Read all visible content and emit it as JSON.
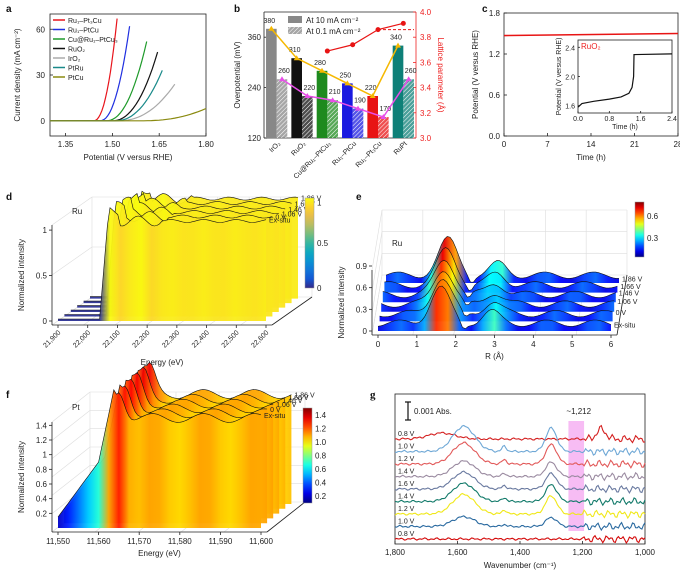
{
  "chart_data": [
    {
      "panel": "a",
      "type": "line",
      "xlabel": "Potential (V versus RHE)",
      "ylabel": "Current density (mA cm⁻²)",
      "xlim": [
        1.3,
        1.8
      ],
      "ylim": [
        -10,
        70
      ],
      "xticks": [
        "1.35",
        "1.50",
        "1.65",
        "1.80"
      ],
      "yticks": [
        "0",
        "30",
        "60"
      ],
      "legend_position": "top-left",
      "series": [
        {
          "name": "Ru₁–Pt₃Cu",
          "color": "#e8141c",
          "onset": 1.44,
          "end_x": 1.515,
          "end_y": 67
        },
        {
          "name": "Ru₁–PtCu",
          "color": "#1f2fe0",
          "onset": 1.46,
          "end_x": 1.555,
          "end_y": 62
        },
        {
          "name": "Cu@Ru₁–PtCu₃",
          "color": "#1e9a2a",
          "onset": 1.48,
          "end_x": 1.61,
          "end_y": 52
        },
        {
          "name": "RuO₂",
          "color": "#111111",
          "onset": 1.5,
          "end_x": 1.645,
          "end_y": 45
        },
        {
          "name": "IrO₂",
          "color": "#aaaaaa",
          "onset": 1.52,
          "end_x": 1.7,
          "end_y": 24
        },
        {
          "name": "PtRu",
          "color": "#1a8a8a",
          "onset": 1.51,
          "end_x": 1.66,
          "end_y": 33
        },
        {
          "name": "PtCu",
          "color": "#8a8a10",
          "onset": 1.6,
          "end_x": 1.8,
          "end_y": 8
        }
      ]
    },
    {
      "panel": "b",
      "type": "bar",
      "ylabel": "Overpotential (mV)",
      "y2label": "Lattice parameter (Å)",
      "ylim": [
        120,
        420
      ],
      "y2lim": [
        3.0,
        4.0
      ],
      "yticks": [
        "120",
        "240",
        "360"
      ],
      "y2ticks": [
        "3.0",
        "3.2",
        "3.4",
        "3.6",
        "3.8",
        "4.0"
      ],
      "categories": [
        "IrO₂",
        "RuO₂",
        "Cu@Ru₁–PtCu₃",
        "Ru₁–PtCu",
        "Ru₁–Pt₃Cu",
        "RuPt"
      ],
      "bar_colors": [
        "#888888",
        "#111111",
        "#1e8a1e",
        "#1a1ae0",
        "#e81414",
        "#0e8078"
      ],
      "legend_position": "top",
      "series": [
        {
          "name": "At 10 mA cm⁻²",
          "values": [
            380,
            310,
            280,
            250,
            220,
            340
          ],
          "line_color": "#f5b800"
        },
        {
          "name": "At 0.1 mA cm⁻²",
          "values": [
            260,
            220,
            210,
            190,
            170,
            260
          ],
          "pattern": "hatched",
          "line_color": "#e84ee8"
        }
      ],
      "lattice_series": {
        "categories_index": [
          2,
          3,
          4,
          5
        ],
        "values": [
          3.69,
          3.74,
          3.86,
          3.91
        ],
        "color": "#e81414",
        "reference_dashed": 3.86
      }
    },
    {
      "panel": "c",
      "type": "line",
      "xlabel": "Time (h)",
      "ylabel": "Potential (V versus RHE)",
      "xlim": [
        0,
        28
      ],
      "ylim": [
        0.0,
        1.8
      ],
      "xticks": [
        "0",
        "7",
        "14",
        "21",
        "28"
      ],
      "yticks": [
        "0.0",
        "0.6",
        "1.2",
        "1.8"
      ],
      "series": [
        {
          "name": "main",
          "color": "#e81414",
          "x": [
            0,
            28
          ],
          "y": [
            1.47,
            1.5
          ]
        }
      ],
      "inset": {
        "label": "RuO₂",
        "xlabel": "Time (h)",
        "ylabel": "Potential (V versus RHE)",
        "xlim": [
          0.0,
          2.4
        ],
        "ylim": [
          1.5,
          2.5
        ],
        "xticks": [
          "0.0",
          "0.8",
          "1.6",
          "2.4"
        ],
        "yticks": [
          "1.6",
          "2.0",
          "2.4"
        ],
        "x": [
          0.0,
          0.1,
          0.4,
          0.8,
          1.1,
          1.3,
          1.38,
          1.42,
          1.43,
          2.4
        ],
        "y": [
          1.58,
          1.63,
          1.66,
          1.69,
          1.72,
          1.77,
          1.85,
          2.0,
          2.3,
          2.31
        ]
      }
    },
    {
      "panel": "d",
      "type": "surface3d",
      "element_label": "Ru",
      "xlabel": "Energy (eV)",
      "ylabel": "Normalized intensity",
      "xticks": [
        "21,900",
        "22,000",
        "22,100",
        "22,200",
        "22,300",
        "22,400",
        "22,500",
        "22,600"
      ],
      "yticks": [
        "0",
        "0.5",
        "1"
      ],
      "colorbar_ticks": [
        "0",
        "0.5",
        "1"
      ],
      "series_labels": [
        "1.86 V",
        "1.66 V",
        "1.46 V",
        "1.06 V",
        "0 V",
        "Ex-situ"
      ]
    },
    {
      "panel": "e",
      "type": "surface3d",
      "element_label": "Ru",
      "xlabel": "R (Å)",
      "ylabel": "Normalized intensity",
      "xticks": [
        "0",
        "1",
        "2",
        "3",
        "4",
        "5",
        "6"
      ],
      "yticks": [
        "0",
        "0.3",
        "0.6",
        "0.9"
      ],
      "colorbar_ticks": [
        "0.3",
        "0.6"
      ],
      "series_labels": [
        "1.86 V",
        "1.66 V",
        "1.46 V",
        "1.06 V",
        "0 V",
        "Ex-situ"
      ]
    },
    {
      "panel": "f",
      "type": "surface3d",
      "element_label": "Pt",
      "xlabel": "Energy (eV)",
      "ylabel": "Normalized intensity",
      "xticks": [
        "11,550",
        "11,560",
        "11,570",
        "11,580",
        "11,590",
        "11,600"
      ],
      "yticks": [
        "0.2",
        "0.4",
        "0.6",
        "0.8",
        "1",
        "1.2",
        "1.4"
      ],
      "colorbar_ticks": [
        "0.2",
        "0.4",
        "0.6",
        "0.8",
        "1.0",
        "1.2",
        "1.4"
      ],
      "series_labels": [
        "1.86 V",
        "1.66 V",
        "1.46 V",
        "1.06 V",
        "0 V",
        "Ex-situ"
      ]
    },
    {
      "panel": "g",
      "type": "line",
      "xlabel": "Wavenumber (cm⁻¹)",
      "xlim": [
        1800,
        1000
      ],
      "xticks": [
        "1,800",
        "1,600",
        "1,400",
        "1,200",
        "1,000"
      ],
      "scale_bar": "0.001 Abs.",
      "annotation": "~1,212",
      "highlight_band": [
        1245,
        1195
      ],
      "series": [
        {
          "name": "0.8 V",
          "color": "#d42020"
        },
        {
          "name": "1.0 V",
          "color": "#6fa8d6"
        },
        {
          "name": "1.2 V",
          "color": "#e25a5a"
        },
        {
          "name": "1.4 V",
          "color": "#9a8aa0"
        },
        {
          "name": "1.6 V",
          "color": "#6a7aa0"
        },
        {
          "name": "1.4 V",
          "color": "#127a6a"
        },
        {
          "name": "1.2 V",
          "color": "#f0e81a"
        },
        {
          "name": "1.0 V",
          "color": "#2a6aa0"
        },
        {
          "name": "0.8 V",
          "color": "#d40a0a"
        }
      ]
    }
  ],
  "panel_labels": {
    "a": "a",
    "b": "b",
    "c": "c",
    "d": "d",
    "e": "e",
    "f": "f",
    "g": "g"
  }
}
